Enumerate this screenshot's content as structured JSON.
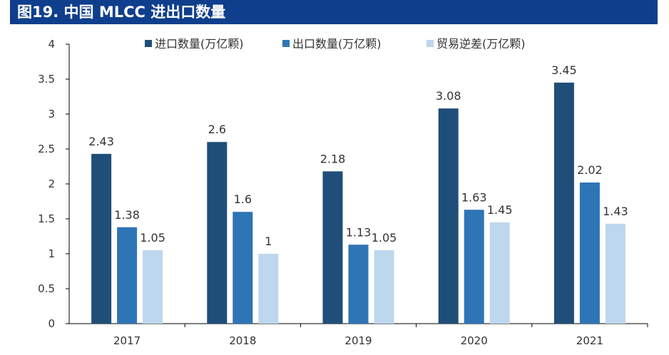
{
  "figure": {
    "title": "图19. 中国 MLCC 进出口数量"
  },
  "chart_data": {
    "type": "bar",
    "categories": [
      "2017",
      "2018",
      "2019",
      "2020",
      "2021"
    ],
    "series": [
      {
        "name": "进口数量(万亿颗)",
        "values": [
          2.43,
          2.6,
          2.18,
          3.08,
          3.45
        ],
        "color": "#1f4e79"
      },
      {
        "name": "出口数量(万亿颗)",
        "values": [
          1.38,
          1.6,
          1.13,
          1.63,
          2.02
        ],
        "color": "#2e75b6"
      },
      {
        "name": "贸易逆差(万亿颗)",
        "values": [
          1.05,
          1,
          1.05,
          1.45,
          1.43
        ],
        "color": "#bdd7ee"
      }
    ],
    "ylim": [
      0,
      4
    ],
    "yticks": [
      "0",
      "0.5",
      "1",
      "1.5",
      "2",
      "2.5",
      "3",
      "3.5",
      "4"
    ],
    "data_labels": [
      [
        "2.43",
        "2.6",
        "2.18",
        "3.08",
        "3.45"
      ],
      [
        "1.38",
        "1.6",
        "1.13",
        "1.63",
        "2.02"
      ],
      [
        "1.05",
        "1",
        "1.05",
        "1.45",
        "1.43"
      ]
    ],
    "legend_position": "top",
    "grid": false
  }
}
